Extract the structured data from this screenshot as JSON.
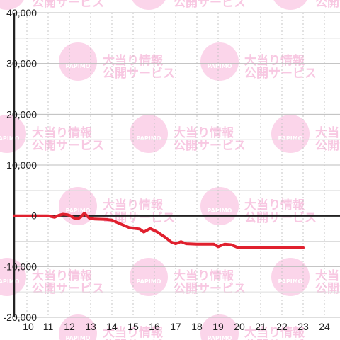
{
  "chart_data": {
    "type": "line",
    "title": "",
    "xlabel": "",
    "ylabel": "",
    "xlim": [
      9.4,
      24.3
    ],
    "ylim": [
      -20000,
      40000
    ],
    "x_ticks": [
      "10",
      "11",
      "12",
      "13",
      "14",
      "15",
      "16",
      "17",
      "18",
      "19",
      "20",
      "21",
      "22",
      "23",
      "24"
    ],
    "y_ticks": [
      "40,000",
      "30,000",
      "20,000",
      "10,000",
      "0",
      "-10,000",
      "-20,000"
    ],
    "y_tick_values": [
      40000,
      30000,
      20000,
      10000,
      0,
      -10000,
      -20000
    ],
    "grid": true,
    "series": [
      {
        "color": "#e0202e",
        "points": [
          [
            9.4,
            0
          ],
          [
            11.0,
            0
          ],
          [
            11.3,
            -300
          ],
          [
            11.5,
            100
          ],
          [
            11.7,
            300
          ],
          [
            11.9,
            200
          ],
          [
            12.0,
            100
          ],
          [
            12.2,
            -400
          ],
          [
            12.4,
            -600
          ],
          [
            12.55,
            -200
          ],
          [
            12.7,
            500
          ],
          [
            12.8,
            100
          ],
          [
            12.95,
            -500
          ],
          [
            13.2,
            -650
          ],
          [
            13.7,
            -700
          ],
          [
            14.0,
            -850
          ],
          [
            14.4,
            -1600
          ],
          [
            14.8,
            -2300
          ],
          [
            15.1,
            -2500
          ],
          [
            15.3,
            -2600
          ],
          [
            15.5,
            -3200
          ],
          [
            15.8,
            -2500
          ],
          [
            16.1,
            -3100
          ],
          [
            16.5,
            -4200
          ],
          [
            16.8,
            -5200
          ],
          [
            17.0,
            -5500
          ],
          [
            17.25,
            -5100
          ],
          [
            17.5,
            -5500
          ],
          [
            18.0,
            -5600
          ],
          [
            18.8,
            -5600
          ],
          [
            19.0,
            -6100
          ],
          [
            19.3,
            -5600
          ],
          [
            19.6,
            -5700
          ],
          [
            19.9,
            -6200
          ],
          [
            20.2,
            -6300
          ],
          [
            21.0,
            -6300
          ],
          [
            23.0,
            -6300
          ]
        ]
      }
    ]
  },
  "watermark": {
    "logo_text": "PAPIMO",
    "line1": "大当り情報",
    "line2": "公開サービス"
  }
}
